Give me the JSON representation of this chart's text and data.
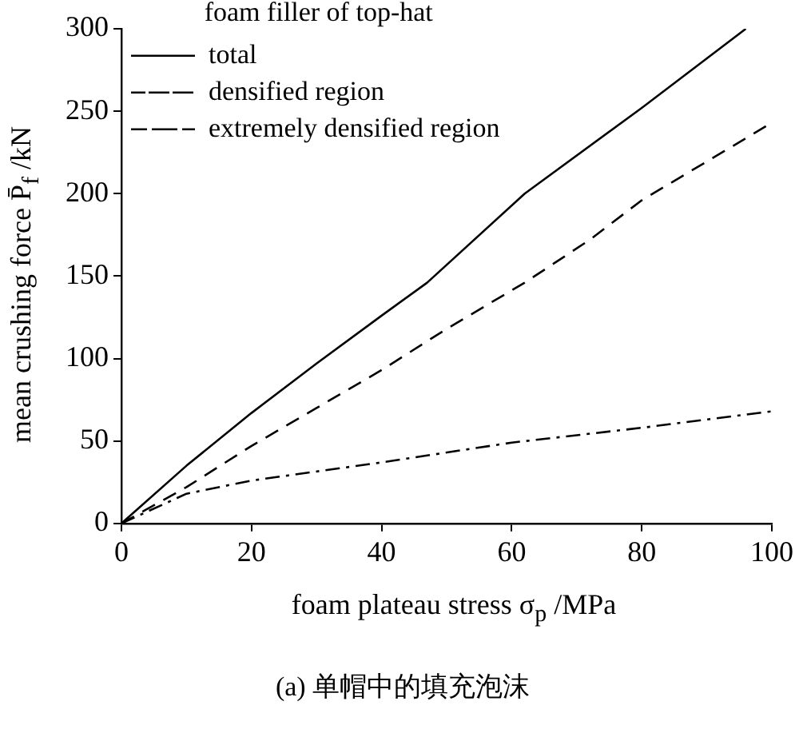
{
  "chart_data": {
    "type": "line",
    "xlabel": "foam plateau stress σ$_{p}$ /MPa",
    "ylabel": "mean crushing force P̄$_{f}$ /kN",
    "legend_title": "foam filler of top-hat",
    "series": [
      {
        "name": "total",
        "color": "#000000",
        "line_style": "solid",
        "x": [
          0,
          10,
          20,
          30,
          40,
          47,
          62,
          80,
          96
        ],
        "values": [
          0,
          35,
          67,
          97,
          126,
          146,
          200,
          252,
          300
        ]
      },
      {
        "name": "densified region",
        "color": "#000000",
        "line_style": "dashed",
        "x": [
          0,
          10,
          20,
          30,
          40,
          50,
          62,
          72,
          80,
          100
        ],
        "values": [
          0,
          22,
          47,
          70,
          93,
          118,
          146,
          172,
          196,
          243
        ]
      },
      {
        "name": "extremely densified region",
        "color": "#000000",
        "line_style": "dashdot",
        "x": [
          0,
          10,
          20,
          40,
          60,
          80,
          100
        ],
        "values": [
          0,
          18,
          26,
          37,
          49,
          58,
          68
        ]
      }
    ],
    "xlim": [
      0,
      100
    ],
    "xticks": [
      0,
      20,
      40,
      60,
      80,
      100
    ],
    "ylim": [
      0,
      300
    ],
    "yticks": [
      0,
      50,
      100,
      150,
      200,
      250,
      300
    ],
    "grid": false,
    "legend": "top left",
    "marker": "none",
    "annotations": [
      "(a) 单帽中的填充泡沫"
    ]
  }
}
